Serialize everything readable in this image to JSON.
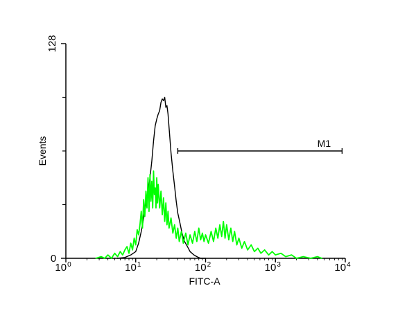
{
  "chart_data": {
    "type": "line",
    "title": "",
    "xlabel": "FITC-A",
    "ylabel": "Events",
    "x_scale": "log",
    "xlim": [
      1,
      10000
    ],
    "ylim": [
      0,
      128
    ],
    "grid": false,
    "x_ticks": [
      {
        "base": "10",
        "exp": "0",
        "value": 1
      },
      {
        "base": "10",
        "exp": "1",
        "value": 10
      },
      {
        "base": "10",
        "exp": "2",
        "value": 100
      },
      {
        "base": "10",
        "exp": "3",
        "value": 1000
      },
      {
        "base": "10",
        "exp": "4",
        "value": 10000
      }
    ],
    "y_ticks": [
      0,
      128
    ],
    "y_tick_labels": [
      "0",
      "128"
    ],
    "series": [
      {
        "color": "#000000",
        "points": [
          [
            5.5,
            0
          ],
          [
            7,
            0.5
          ],
          [
            8.5,
            2
          ],
          [
            10,
            4
          ],
          [
            11,
            9
          ],
          [
            12,
            16
          ],
          [
            13,
            24
          ],
          [
            14,
            32
          ],
          [
            15,
            38
          ],
          [
            16,
            48
          ],
          [
            17,
            58
          ],
          [
            18,
            70
          ],
          [
            19,
            79
          ],
          [
            20,
            83
          ],
          [
            21,
            86
          ],
          [
            22,
            88
          ],
          [
            23,
            93
          ],
          [
            24,
            95
          ],
          [
            25,
            94
          ],
          [
            26,
            96
          ],
          [
            27,
            90
          ],
          [
            28,
            91
          ],
          [
            29,
            86
          ],
          [
            30,
            78
          ],
          [
            32,
            63
          ],
          [
            34,
            52
          ],
          [
            36,
            43
          ],
          [
            38,
            34
          ],
          [
            40,
            27
          ],
          [
            43,
            21
          ],
          [
            46,
            15
          ],
          [
            50,
            10
          ],
          [
            55,
            7
          ],
          [
            60,
            4
          ],
          [
            68,
            2
          ],
          [
            75,
            1
          ],
          [
            85,
            0
          ],
          [
            100,
            0
          ]
        ]
      },
      {
        "color": "#00ff00",
        "points": [
          [
            2.7,
            0
          ],
          [
            3.2,
            1
          ],
          [
            3.6,
            0
          ],
          [
            4,
            2
          ],
          [
            4.5,
            0
          ],
          [
            5,
            3
          ],
          [
            5.5,
            1
          ],
          [
            6,
            4
          ],
          [
            6.5,
            2
          ],
          [
            7,
            5
          ],
          [
            7.5,
            7
          ],
          [
            8,
            3
          ],
          [
            8.5,
            9
          ],
          [
            9,
            5
          ],
          [
            9.5,
            12
          ],
          [
            10,
            8
          ],
          [
            10.5,
            17
          ],
          [
            11,
            14
          ],
          [
            11.5,
            20
          ],
          [
            12,
            28
          ],
          [
            12.5,
            18
          ],
          [
            13,
            35
          ],
          [
            13.5,
            25
          ],
          [
            14,
            40
          ],
          [
            14.5,
            30
          ],
          [
            15,
            48
          ],
          [
            15.5,
            28
          ],
          [
            16,
            50
          ],
          [
            16.5,
            34
          ],
          [
            17,
            46
          ],
          [
            17.5,
            30
          ],
          [
            18,
            52
          ],
          [
            18.5,
            38
          ],
          [
            19,
            42
          ],
          [
            19.5,
            30
          ],
          [
            20,
            48
          ],
          [
            20.5,
            33
          ],
          [
            21,
            44
          ],
          [
            22,
            30
          ],
          [
            23,
            40
          ],
          [
            24,
            26
          ],
          [
            25,
            36
          ],
          [
            26,
            22
          ],
          [
            27,
            33
          ],
          [
            28,
            20
          ],
          [
            29,
            28
          ],
          [
            30,
            18
          ],
          [
            32,
            24
          ],
          [
            34,
            15
          ],
          [
            36,
            20
          ],
          [
            38,
            12
          ],
          [
            40,
            18
          ],
          [
            42,
            10
          ],
          [
            45,
            16
          ],
          [
            48,
            9
          ],
          [
            52,
            15
          ],
          [
            56,
            8
          ],
          [
            60,
            14
          ],
          [
            65,
            9
          ],
          [
            70,
            16
          ],
          [
            75,
            10
          ],
          [
            80,
            18
          ],
          [
            85,
            11
          ],
          [
            90,
            15
          ],
          [
            95,
            10
          ],
          [
            100,
            14
          ],
          [
            110,
            9
          ],
          [
            120,
            16
          ],
          [
            130,
            10
          ],
          [
            140,
            18
          ],
          [
            150,
            12
          ],
          [
            160,
            20
          ],
          [
            170,
            13
          ],
          [
            180,
            22
          ],
          [
            190,
            12
          ],
          [
            200,
            20
          ],
          [
            215,
            11
          ],
          [
            230,
            18
          ],
          [
            245,
            10
          ],
          [
            260,
            16
          ],
          [
            280,
            8
          ],
          [
            300,
            12
          ],
          [
            330,
            6
          ],
          [
            360,
            10
          ],
          [
            400,
            5
          ],
          [
            450,
            8
          ],
          [
            500,
            4
          ],
          [
            560,
            6
          ],
          [
            620,
            3
          ],
          [
            700,
            5
          ],
          [
            800,
            2
          ],
          [
            900,
            4
          ],
          [
            1000,
            2
          ],
          [
            1200,
            3
          ],
          [
            1400,
            1
          ],
          [
            1700,
            2
          ],
          [
            2000,
            0
          ],
          [
            2500,
            1
          ],
          [
            3200,
            0
          ],
          [
            4000,
            1
          ],
          [
            4600,
            0
          ]
        ]
      }
    ],
    "annotations": [
      {
        "label": "M1",
        "x_start": 40,
        "x_end": 9000,
        "y": 64
      }
    ]
  }
}
